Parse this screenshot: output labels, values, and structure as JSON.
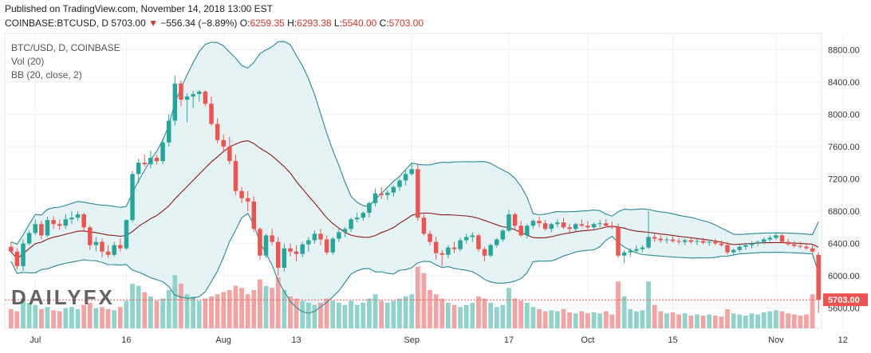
{
  "header": {
    "published": "Published on TradingView.com, November 14, 2018 13:00 EST",
    "symbol": "COINBASE:BTCUSD, D",
    "last": "5703.00",
    "arrow": "▼",
    "change": "−556.34 (−8.89%)",
    "o_label": "O:",
    "o_value": "6259.35",
    "h_label": "H:",
    "h_value": "6293.38",
    "l_label": "L:",
    "l_value": "5540.00",
    "c_label": "C:",
    "c_value": "5703.00"
  },
  "legend": [
    "BTC/USD, D, COINBASE",
    "Vol (20)",
    "BB (20, close, 2)"
  ],
  "watermark": "DAILYFX",
  "colors": {
    "up": "#26a69a",
    "down": "#ef5350",
    "bb_band": "#2a8a93",
    "bb_basis": "#8b1a1a",
    "fill": "#e6f3f4",
    "vol_up": "#8fd3cb",
    "vol_down": "#f4a3a3",
    "grid": "#eef0f3"
  },
  "chart_data": {
    "type": "candlestick",
    "title": "BTC/USD, D, COINBASE",
    "ylim": [
      5350,
      9000
    ],
    "y_ticks": [
      "5600.00",
      "6000.00",
      "6400.00",
      "6800.00",
      "7200.00",
      "7600.00",
      "8000.00",
      "8400.00",
      "8800.00"
    ],
    "last_price_label": "5703.00",
    "x_ticks": [
      {
        "label": "Jul",
        "index": 4
      },
      {
        "label": "16",
        "index": 19
      },
      {
        "label": "Aug",
        "index": 35
      },
      {
        "label": "13",
        "index": 47
      },
      {
        "label": "Sep",
        "index": 66
      },
      {
        "label": "17",
        "index": 82
      },
      {
        "label": "Oct",
        "index": 95
      },
      {
        "label": "15",
        "index": 109
      },
      {
        "label": "Nov",
        "index": 126
      },
      {
        "label": "12",
        "index": 137
      }
    ],
    "candles": [
      [
        6360,
        6420,
        6280,
        6300
      ],
      [
        6300,
        6340,
        6080,
        6120
      ],
      [
        6120,
        6450,
        6060,
        6400
      ],
      [
        6400,
        6560,
        6380,
        6530
      ],
      [
        6530,
        6700,
        6500,
        6640
      ],
      [
        6640,
        6680,
        6450,
        6500
      ],
      [
        6500,
        6730,
        6480,
        6690
      ],
      [
        6690,
        6740,
        6580,
        6640
      ],
      [
        6640,
        6700,
        6570,
        6620
      ],
      [
        6620,
        6760,
        6580,
        6700
      ],
      [
        6700,
        6800,
        6640,
        6720
      ],
      [
        6720,
        6800,
        6680,
        6760
      ],
      [
        6760,
        6780,
        6560,
        6600
      ],
      [
        6600,
        6620,
        6320,
        6380
      ],
      [
        6380,
        6480,
        6300,
        6420
      ],
      [
        6420,
        6460,
        6230,
        6300
      ],
      [
        6300,
        6380,
        6220,
        6260
      ],
      [
        6260,
        6420,
        6240,
        6380
      ],
      [
        6380,
        6460,
        6300,
        6340
      ],
      [
        6340,
        6700,
        6320,
        6690
      ],
      [
        6690,
        7300,
        6660,
        7260
      ],
      [
        7260,
        7450,
        7150,
        7400
      ],
      [
        7400,
        7500,
        7350,
        7380
      ],
      [
        7380,
        7550,
        7330,
        7460
      ],
      [
        7460,
        7500,
        7380,
        7420
      ],
      [
        7420,
        7700,
        7380,
        7650
      ],
      [
        7650,
        8000,
        7600,
        7920
      ],
      [
        7920,
        8480,
        7860,
        8380
      ],
      [
        8380,
        8420,
        8100,
        8180
      ],
      [
        8180,
        8260,
        7900,
        8220
      ],
      [
        8220,
        8290,
        8080,
        8250
      ],
      [
        8250,
        8300,
        8160,
        8280
      ],
      [
        8280,
        8300,
        8100,
        8130
      ],
      [
        8130,
        8220,
        7860,
        7880
      ],
      [
        7880,
        7950,
        7640,
        7680
      ],
      [
        7680,
        7750,
        7540,
        7600
      ],
      [
        7600,
        7720,
        7380,
        7420
      ],
      [
        7420,
        7500,
        7000,
        7050
      ],
      [
        7050,
        7100,
        6900,
        6960
      ],
      [
        6960,
        7050,
        6800,
        6920
      ],
      [
        6920,
        6980,
        6540,
        6580
      ],
      [
        6580,
        6600,
        6200,
        6250
      ],
      [
        6250,
        6520,
        6220,
        6500
      ],
      [
        6500,
        6580,
        6380,
        6420
      ],
      [
        6420,
        6480,
        6000,
        6100
      ],
      [
        6100,
        6400,
        6050,
        6340
      ],
      [
        6340,
        6400,
        6240,
        6300
      ],
      [
        6300,
        6380,
        6180,
        6270
      ],
      [
        6270,
        6420,
        6230,
        6390
      ],
      [
        6390,
        6480,
        6300,
        6440
      ],
      [
        6440,
        6560,
        6400,
        6520
      ],
      [
        6520,
        6580,
        6380,
        6450
      ],
      [
        6450,
        6500,
        6260,
        6290
      ],
      [
        6290,
        6480,
        6260,
        6460
      ],
      [
        6460,
        6580,
        6420,
        6540
      ],
      [
        6540,
        6600,
        6480,
        6580
      ],
      [
        6580,
        6720,
        6540,
        6700
      ],
      [
        6700,
        6780,
        6660,
        6720
      ],
      [
        6720,
        6800,
        6680,
        6780
      ],
      [
        6780,
        6920,
        6720,
        6900
      ],
      [
        6900,
        7080,
        6860,
        7020
      ],
      [
        7020,
        7100,
        6950,
        7000
      ],
      [
        7000,
        7060,
        6940,
        7030
      ],
      [
        7030,
        7120,
        6980,
        7100
      ],
      [
        7100,
        7200,
        7050,
        7180
      ],
      [
        7180,
        7300,
        7120,
        7260
      ],
      [
        7260,
        7400,
        7240,
        7320
      ],
      [
        7320,
        7380,
        6680,
        6720
      ],
      [
        6720,
        6760,
        6500,
        6520
      ],
      [
        6520,
        6560,
        6380,
        6420
      ],
      [
        6420,
        6480,
        6200,
        6280
      ],
      [
        6280,
        6320,
        6120,
        6260
      ],
      [
        6260,
        6380,
        6220,
        6350
      ],
      [
        6350,
        6420,
        6280,
        6330
      ],
      [
        6330,
        6470,
        6300,
        6440
      ],
      [
        6440,
        6520,
        6400,
        6480
      ],
      [
        6480,
        6540,
        6420,
        6500
      ],
      [
        6500,
        6520,
        6300,
        6330
      ],
      [
        6330,
        6360,
        6180,
        6250
      ],
      [
        6250,
        6400,
        6230,
        6380
      ],
      [
        6380,
        6470,
        6350,
        6450
      ],
      [
        6450,
        6580,
        6420,
        6560
      ],
      [
        6560,
        6820,
        6540,
        6760
      ],
      [
        6760,
        6780,
        6560,
        6620
      ],
      [
        6620,
        6680,
        6480,
        6500
      ],
      [
        6500,
        6640,
        6460,
        6620
      ],
      [
        6620,
        6700,
        6580,
        6680
      ],
      [
        6680,
        6730,
        6600,
        6650
      ],
      [
        6650,
        6690,
        6560,
        6580
      ],
      [
        6580,
        6660,
        6540,
        6640
      ],
      [
        6640,
        6700,
        6600,
        6660
      ],
      [
        6660,
        6720,
        6580,
        6600
      ],
      [
        6600,
        6640,
        6540,
        6580
      ],
      [
        6580,
        6660,
        6550,
        6640
      ],
      [
        6640,
        6700,
        6600,
        6620
      ],
      [
        6620,
        6680,
        6560,
        6600
      ],
      [
        6600,
        6660,
        6570,
        6640
      ],
      [
        6640,
        6690,
        6600,
        6650
      ],
      [
        6650,
        6700,
        6600,
        6620
      ],
      [
        6620,
        6670,
        6580,
        6600
      ],
      [
        6600,
        6650,
        6220,
        6250
      ],
      [
        6250,
        6320,
        6160,
        6290
      ],
      [
        6290,
        6340,
        6240,
        6310
      ],
      [
        6310,
        6380,
        6280,
        6330
      ],
      [
        6330,
        6380,
        6290,
        6350
      ],
      [
        6350,
        6800,
        6330,
        6480
      ],
      [
        6480,
        6520,
        6420,
        6460
      ],
      [
        6460,
        6500,
        6410,
        6440
      ],
      [
        6440,
        6480,
        6400,
        6450
      ],
      [
        6450,
        6490,
        6410,
        6430
      ],
      [
        6430,
        6470,
        6390,
        6420
      ],
      [
        6420,
        6460,
        6380,
        6440
      ],
      [
        6440,
        6480,
        6400,
        6420
      ],
      [
        6420,
        6460,
        6380,
        6430
      ],
      [
        6430,
        6470,
        6390,
        6410
      ],
      [
        6410,
        6450,
        6370,
        6420
      ],
      [
        6420,
        6460,
        6380,
        6400
      ],
      [
        6400,
        6440,
        6360,
        6380
      ],
      [
        6380,
        6420,
        6260,
        6290
      ],
      [
        6290,
        6340,
        6260,
        6320
      ],
      [
        6320,
        6380,
        6290,
        6360
      ],
      [
        6360,
        6410,
        6320,
        6380
      ],
      [
        6380,
        6430,
        6340,
        6400
      ],
      [
        6400,
        6440,
        6370,
        6420
      ],
      [
        6420,
        6470,
        6390,
        6450
      ],
      [
        6450,
        6500,
        6420,
        6470
      ],
      [
        6470,
        6530,
        6440,
        6500
      ],
      [
        6500,
        6520,
        6400,
        6420
      ],
      [
        6420,
        6460,
        6370,
        6390
      ],
      [
        6390,
        6430,
        6350,
        6370
      ],
      [
        6370,
        6420,
        6340,
        6360
      ],
      [
        6360,
        6400,
        6320,
        6340
      ],
      [
        6340,
        6380,
        6280,
        6300
      ],
      [
        6259.35,
        6293.38,
        5540,
        5703
      ]
    ],
    "volume_ylim": [
      0,
      3000000
    ],
    "volumes": [
      900000,
      800000,
      1400000,
      1200000,
      1100000,
      900000,
      1000000,
      850000,
      800000,
      950000,
      1000000,
      900000,
      1100000,
      1200000,
      950000,
      1000000,
      900000,
      850000,
      1000000,
      1300000,
      2100000,
      2000000,
      1700000,
      1500000,
      1300000,
      1400000,
      1800000,
      2500000,
      2100000,
      1600000,
      1500000,
      1300000,
      1400000,
      1500000,
      1600000,
      1700000,
      1800000,
      2000000,
      1900000,
      1600000,
      1800000,
      2300000,
      2000000,
      1900000,
      2400000,
      1800000,
      1500000,
      1400000,
      1300000,
      1200000,
      1100000,
      1200000,
      1400000,
      1300000,
      1200000,
      1100000,
      1300000,
      1100000,
      1200000,
      1400000,
      1600000,
      1300000,
      1200000,
      1300000,
      1400000,
      1500000,
      1600000,
      2900000,
      2600000,
      1800000,
      1600000,
      1400000,
      1200000,
      1100000,
      1000000,
      1100000,
      1200000,
      1500000,
      1400000,
      1200000,
      1000000,
      1100000,
      1900000,
      1400000,
      1300000,
      1200000,
      1000000,
      900000,
      800000,
      850000,
      800000,
      900000,
      750000,
      700000,
      800000,
      700000,
      750000,
      700000,
      800000,
      650000,
      2200000,
      1500000,
      900000,
      800000,
      850000,
      2200000,
      1100000,
      800000,
      700000,
      750000,
      650000,
      700000,
      600000,
      650000,
      600000,
      650000,
      600000,
      550000,
      900000,
      700000,
      650000,
      600000,
      700000,
      650000,
      750000,
      800000,
      850000,
      800000,
      700000,
      650000,
      600000,
      650000,
      1600000
    ]
  }
}
